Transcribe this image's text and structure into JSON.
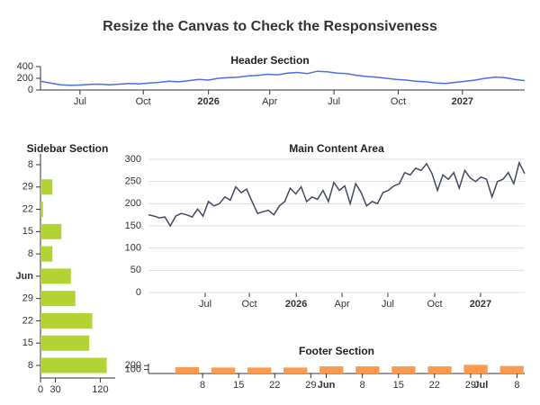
{
  "title": "Resize the Canvas to Check the Responsiveness",
  "chart_data": [
    {
      "type": "line",
      "title": "Header Section",
      "color": "#4a6fe3",
      "values": [
        150,
        120,
        90,
        80,
        85,
        95,
        100,
        90,
        100,
        110,
        105,
        120,
        130,
        150,
        140,
        160,
        180,
        170,
        200,
        210,
        220,
        240,
        250,
        270,
        260,
        290,
        300,
        280,
        320,
        310,
        290,
        280,
        250,
        230,
        220,
        200,
        180,
        170,
        150,
        140,
        120,
        110,
        130,
        150,
        170,
        200,
        220,
        210,
        180,
        160
      ],
      "xlim": [
        0,
        49
      ],
      "xticks": [
        {
          "value": 4.0,
          "label": "Jul"
        },
        {
          "value": 10.4,
          "label": "Oct"
        },
        {
          "value": 17.0,
          "label": "2026",
          "bold": true
        },
        {
          "value": 23.2,
          "label": "Apr"
        },
        {
          "value": 29.7,
          "label": "Jul"
        },
        {
          "value": 36.2,
          "label": "Oct"
        },
        {
          "value": 42.7,
          "label": "2027",
          "bold": true
        }
      ],
      "ylim": [
        0,
        400
      ],
      "yticks": [
        0,
        200,
        400
      ],
      "grid": false
    },
    {
      "type": "bar",
      "orientation": "horizontal",
      "title": "Sidebar Section",
      "color": "#b3d335",
      "categories": [
        {
          "label": "8"
        },
        {
          "label": "29"
        },
        {
          "label": "22"
        },
        {
          "label": "15"
        },
        {
          "label": "8"
        },
        {
          "label": "Jun",
          "bold": true
        },
        {
          "label": "29"
        },
        {
          "label": "22"
        },
        {
          "label": "15"
        },
        {
          "label": "8"
        }
      ],
      "values": [
        null,
        24,
        5,
        42,
        24,
        61,
        70,
        104,
        98,
        133
      ],
      "xlim": [
        0,
        150
      ],
      "xticks": [
        0,
        30,
        120
      ]
    },
    {
      "type": "line",
      "title": "Main Content Area",
      "color": "#434863",
      "values": [
        175,
        172,
        168,
        170,
        150,
        172,
        178,
        175,
        170,
        188,
        172,
        205,
        195,
        200,
        215,
        208,
        238,
        225,
        233,
        205,
        178,
        182,
        185,
        175,
        195,
        205,
        235,
        222,
        238,
        205,
        215,
        210,
        230,
        205,
        248,
        230,
        240,
        200,
        245,
        225,
        195,
        205,
        200,
        225,
        230,
        240,
        245,
        270,
        265,
        280,
        275,
        290,
        268,
        230,
        265,
        255,
        270,
        235,
        275,
        258,
        250,
        260,
        255,
        215,
        250,
        255,
        270,
        245,
        292,
        268
      ],
      "xlim": [
        0,
        69
      ],
      "xticks": [
        {
          "value": 10.4,
          "label": "Jul"
        },
        {
          "value": 18.5,
          "label": "Oct"
        },
        {
          "value": 27.1,
          "label": "2026",
          "bold": true
        },
        {
          "value": 35.5,
          "label": "Apr"
        },
        {
          "value": 43.9,
          "label": "Jul"
        },
        {
          "value": 52.5,
          "label": "Oct"
        },
        {
          "value": 60.9,
          "label": "2027",
          "bold": true
        }
      ],
      "ylim": [
        0,
        300
      ],
      "yticks": [
        0,
        50,
        100,
        150,
        200,
        250,
        300
      ],
      "grid": true
    },
    {
      "type": "bar",
      "orientation": "vertical",
      "title": "Footer Section",
      "color": "#fd9a4e",
      "x": [
        8,
        15,
        22,
        29,
        36,
        43,
        50,
        57,
        64,
        71
      ],
      "values": [
        160,
        150,
        150,
        150,
        180,
        180,
        180,
        180,
        220,
        190
      ],
      "xlim": [
        0.5,
        73.5
      ],
      "xticks": [
        {
          "value": 11,
          "label": "8"
        },
        {
          "value": 18,
          "label": "15"
        },
        {
          "value": 25,
          "label": "22"
        },
        {
          "value": 32,
          "label": "29"
        },
        {
          "value": 35,
          "label": "Jun",
          "bold": true
        },
        {
          "value": 42,
          "label": "8"
        },
        {
          "value": 49,
          "label": "15"
        },
        {
          "value": 56,
          "label": "22"
        },
        {
          "value": 63,
          "label": "29"
        },
        {
          "value": 65,
          "label": "Jul",
          "bold": true
        },
        {
          "value": 72,
          "label": "8"
        }
      ],
      "ylim": [
        0,
        250
      ],
      "yticks": [
        100,
        200
      ]
    }
  ]
}
